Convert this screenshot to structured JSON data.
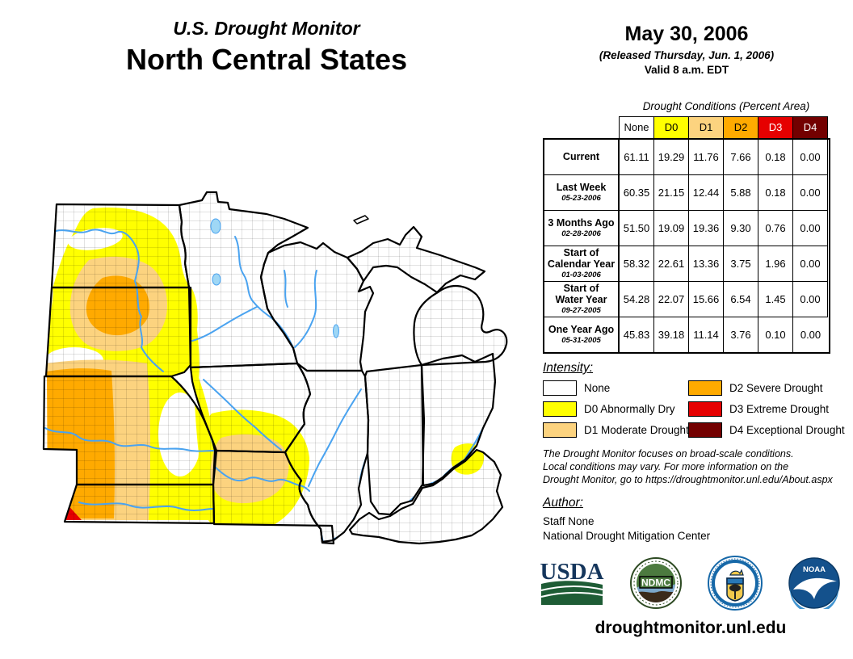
{
  "title": {
    "line1": "U.S. Drought Monitor",
    "line2": "North Central States"
  },
  "date_block": {
    "date": "May 30, 2006",
    "released": "(Released Thursday, Jun. 1, 2006)",
    "valid": "Valid 8 a.m. EDT"
  },
  "table": {
    "caption": "Drought Conditions (Percent Area)",
    "columns": [
      "None",
      "D0",
      "D1",
      "D2",
      "D3",
      "D4"
    ],
    "column_colors": [
      "#FFFFFF",
      "#FFFF00",
      "#FCD37F",
      "#FFAA00",
      "#E60000",
      "#730000"
    ],
    "column_text_colors": [
      "#000000",
      "#000000",
      "#000000",
      "#000000",
      "#FFFFFF",
      "#FFFFFF"
    ],
    "rows": [
      {
        "label_lines": [
          "Current"
        ],
        "date": "",
        "values": [
          "61.11",
          "19.29",
          "11.76",
          "7.66",
          "0.18",
          "0.00"
        ]
      },
      {
        "label_lines": [
          "Last Week"
        ],
        "date": "05-23-2006",
        "values": [
          "60.35",
          "21.15",
          "12.44",
          "5.88",
          "0.18",
          "0.00"
        ]
      },
      {
        "label_lines": [
          "3 Months Ago"
        ],
        "date": "02-28-2006",
        "values": [
          "51.50",
          "19.09",
          "19.36",
          "9.30",
          "0.76",
          "0.00"
        ]
      },
      {
        "label_lines": [
          "Start of",
          "Calendar Year"
        ],
        "date": "01-03-2006",
        "values": [
          "58.32",
          "22.61",
          "13.36",
          "3.75",
          "1.96",
          "0.00"
        ]
      },
      {
        "label_lines": [
          "Start of",
          "Water Year"
        ],
        "date": "09-27-2005",
        "values": [
          "54.28",
          "22.07",
          "15.66",
          "6.54",
          "1.45",
          "0.00"
        ]
      },
      {
        "label_lines": [
          "One Year Ago"
        ],
        "date": "05-31-2005",
        "values": [
          "45.83",
          "39.18",
          "11.14",
          "3.76",
          "0.10",
          "0.00"
        ]
      }
    ]
  },
  "legend": {
    "heading": "Intensity:",
    "items": [
      {
        "label": "None",
        "color": "#FFFFFF"
      },
      {
        "label": "D0 Abnormally Dry",
        "color": "#FFFF00"
      },
      {
        "label": "D1 Moderate Drought",
        "color": "#FCD37F"
      },
      {
        "label": "D2 Severe Drought",
        "color": "#FFAA00"
      },
      {
        "label": "D3 Extreme Drought",
        "color": "#E60000"
      },
      {
        "label": "D4 Exceptional Drought",
        "color": "#730000"
      }
    ]
  },
  "disclaimer": {
    "line1": "The Drought Monitor focuses on broad-scale conditions.",
    "line2": "Local conditions may vary. For more information on the",
    "line3": "Drought Monitor, go to https://droughtmonitor.unl.edu/About.aspx"
  },
  "author": {
    "heading": "Author:",
    "name": "Staff None",
    "org": "National Drought Mitigation Center"
  },
  "logos": {
    "usda_text": "USDA",
    "ndmc_text": "NDMC",
    "noaa_text": "NOAA"
  },
  "footer": {
    "url": "droughtmonitor.unl.edu"
  },
  "map_colors": {
    "river": "#4AA3F0",
    "lake_fill": "#9FD7F5",
    "d3_spot": "#E60000"
  }
}
